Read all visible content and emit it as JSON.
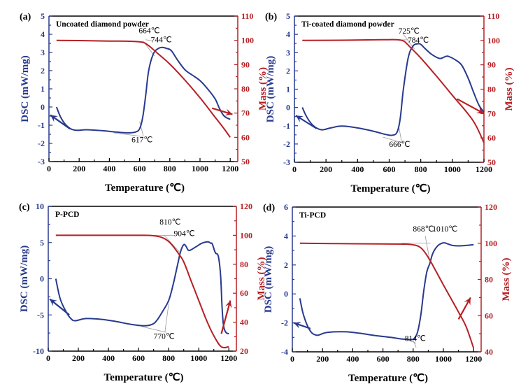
{
  "colors": {
    "dsc": "#283a8e",
    "mass": "#b52025",
    "guide": "#9a9a9a",
    "frame": "#000000"
  },
  "chart_data": [
    {
      "type": "line",
      "panel": "(a)",
      "title": "Uncoated diamond powder",
      "xlabel": "Temperature (℃)",
      "ylabel": "DSC (mW/mg)",
      "y2label": "Mass (%)",
      "xlim": [
        0,
        1250
      ],
      "xticks": [
        0,
        200,
        400,
        600,
        800,
        1000,
        1200
      ],
      "ylim": [
        -3,
        5
      ],
      "yticks": [
        -3,
        -2,
        -1,
        0,
        1,
        2,
        3,
        4,
        5
      ],
      "y2lim": [
        50,
        110
      ],
      "y2ticks": [
        50,
        60,
        70,
        80,
        90,
        100,
        110
      ],
      "series": [
        {
          "name": "DSC",
          "axis": "left",
          "x": [
            50,
            80,
            120,
            170,
            250,
            350,
            450,
            520,
            570,
            600,
            620,
            640,
            660,
            690,
            720,
            750,
            780,
            810,
            850,
            900,
            950,
            1000,
            1050,
            1100,
            1130,
            1160,
            1200
          ],
          "y": [
            0.0,
            -0.6,
            -1.05,
            -1.27,
            -1.25,
            -1.3,
            -1.38,
            -1.42,
            -1.38,
            -1.2,
            -0.6,
            0.6,
            2.0,
            2.9,
            3.2,
            3.28,
            3.22,
            3.1,
            2.6,
            2.05,
            1.75,
            1.45,
            1.0,
            0.45,
            -0.1,
            -0.5,
            -0.68
          ]
        },
        {
          "name": "Mass",
          "axis": "right",
          "x": [
            50,
            200,
            400,
            550,
            620,
            650,
            680,
            720,
            800,
            900,
            1000,
            1100,
            1150,
            1200
          ],
          "y": [
            100,
            99.9,
            99.7,
            99.6,
            99.2,
            98.3,
            96.8,
            94.6,
            90.2,
            83.6,
            76.3,
            68.3,
            64.3,
            60.0
          ]
        }
      ],
      "annotations": [
        {
          "text": "664℃",
          "x": 664,
          "y": 4.05
        },
        {
          "text": "744℃",
          "x": 744,
          "y": 3.55
        },
        {
          "text": "617℃",
          "x": 617,
          "y": -1.95
        }
      ]
    },
    {
      "type": "line",
      "panel": "(b)",
      "title": "Ti-coated diamond powder",
      "xlabel": "Temperature (℃)",
      "ylabel": "DSC (mW/mg)",
      "y2label": "Mass (%)",
      "xlim": [
        0,
        1200
      ],
      "xticks": [
        0,
        200,
        400,
        600,
        800,
        1000,
        1200
      ],
      "ylim": [
        -3,
        5
      ],
      "yticks": [
        -3,
        -2,
        -1,
        0,
        1,
        2,
        3,
        4,
        5
      ],
      "y2lim": [
        50,
        110
      ],
      "y2ticks": [
        50,
        60,
        70,
        80,
        90,
        100,
        110
      ],
      "series": [
        {
          "name": "DSC",
          "axis": "left",
          "x": [
            50,
            80,
            120,
            170,
            230,
            300,
            400,
            500,
            580,
            620,
            650,
            670,
            690,
            720,
            750,
            780,
            800,
            830,
            870,
            920,
            960,
            980,
            1020,
            1060,
            1100,
            1140,
            1170,
            1200
          ],
          "y": [
            0.0,
            -0.55,
            -1.0,
            -1.22,
            -1.12,
            -1.02,
            -1.12,
            -1.3,
            -1.48,
            -1.52,
            -1.35,
            -0.6,
            1.0,
            2.7,
            3.35,
            3.48,
            3.45,
            3.2,
            2.9,
            2.68,
            2.8,
            2.78,
            2.6,
            2.3,
            1.6,
            0.7,
            0.1,
            -0.25
          ]
        },
        {
          "name": "Mass",
          "axis": "right",
          "x": [
            50,
            300,
            550,
            650,
            690,
            710,
            740,
            800,
            900,
            1000,
            1100,
            1150,
            1200
          ],
          "y": [
            100,
            100.1,
            100.3,
            100.3,
            99.8,
            98.8,
            96.8,
            92.8,
            85.3,
            77.5,
            69.8,
            65.0,
            58.0
          ]
        }
      ],
      "annotations": [
        {
          "text": "725℃",
          "x": 725,
          "y": 4.05
        },
        {
          "text": "784℃",
          "x": 784,
          "y": 3.55
        },
        {
          "text": "666℃",
          "x": 666,
          "y": -2.15
        }
      ]
    },
    {
      "type": "line",
      "panel": "(c)",
      "title": "P-PCD",
      "xlabel": "Temperature (℃)",
      "ylabel": "DSC (mW/mg)",
      "y2label": "Mass (%)",
      "xlim": [
        0,
        1250
      ],
      "xticks": [
        0,
        200,
        400,
        600,
        800,
        1000,
        1200
      ],
      "ylim": [
        -10,
        10
      ],
      "yticks": [
        -10,
        -5,
        0,
        5,
        10
      ],
      "y2lim": [
        20,
        120
      ],
      "y2ticks": [
        20,
        40,
        60,
        80,
        100,
        120
      ],
      "series": [
        {
          "name": "DSC",
          "axis": "left",
          "x": [
            50,
            80,
            120,
            150,
            180,
            250,
            350,
            450,
            550,
            640,
            690,
            720,
            760,
            800,
            830,
            860,
            880,
            900,
            915,
            935,
            980,
            1020,
            1060,
            1080,
            1090,
            1110,
            1130,
            1145,
            1155,
            1165,
            1180,
            1200
          ],
          "y": [
            0.0,
            -2.8,
            -4.6,
            -5.5,
            -5.8,
            -5.5,
            -5.6,
            -5.9,
            -6.3,
            -6.5,
            -6.3,
            -5.8,
            -4.5,
            -3.0,
            -0.8,
            2.0,
            3.8,
            4.7,
            4.5,
            3.9,
            4.4,
            4.9,
            5.1,
            4.9,
            4.8,
            3.6,
            3.1,
            0.5,
            -4.0,
            -6.5,
            -7.4,
            -7.6
          ]
        },
        {
          "name": "Mass",
          "axis": "right",
          "x": [
            50,
            300,
            600,
            700,
            760,
            800,
            830,
            870,
            900,
            950,
            1000,
            1050,
            1100,
            1150,
            1200
          ],
          "y": [
            100,
            100,
            100,
            99.7,
            98.3,
            95.7,
            92.3,
            86.7,
            81.7,
            68.3,
            55.0,
            41.7,
            30.7,
            23.0,
            23.0
          ]
        }
      ],
      "annotations": [
        {
          "text": "810℃",
          "x": 810,
          "y": 7.5
        },
        {
          "text": "904℃",
          "x": 904,
          "y": 5.9
        },
        {
          "text": "770℃",
          "x": 770,
          "y": -8.3
        }
      ]
    },
    {
      "type": "line",
      "panel": "(d)",
      "title": "Ti-PCD",
      "xlabel": "Temperature (℃)",
      "ylabel": "DSC (mW/mg)",
      "y2label": "Mass (%)",
      "xlim": [
        0,
        1250
      ],
      "xticks": [
        0,
        200,
        400,
        600,
        800,
        1000,
        1200
      ],
      "ylim": [
        -4,
        6
      ],
      "yticks": [
        -4,
        -2,
        0,
        2,
        4,
        6
      ],
      "y2lim": [
        40,
        120
      ],
      "y2ticks": [
        40,
        60,
        80,
        100,
        120
      ],
      "series": [
        {
          "name": "DSC",
          "axis": "left",
          "x": [
            50,
            70,
            100,
            130,
            160,
            180,
            220,
            280,
            360,
            450,
            550,
            650,
            730,
            790,
            810,
            830,
            850,
            870,
            890,
            910,
            930,
            960,
            990,
            1010,
            1030,
            1060,
            1100,
            1150,
            1200
          ],
          "y": [
            -0.3,
            -1.3,
            -2.2,
            -2.7,
            -2.85,
            -2.82,
            -2.68,
            -2.62,
            -2.62,
            -2.72,
            -2.88,
            -3.0,
            -3.12,
            -3.15,
            -3.05,
            -2.6,
            -1.5,
            0.2,
            1.5,
            2.1,
            2.8,
            3.3,
            3.5,
            3.52,
            3.45,
            3.35,
            3.32,
            3.35,
            3.4
          ]
        },
        {
          "name": "Mass",
          "axis": "right",
          "x": [
            50,
            300,
            600,
            750,
            820,
            850,
            870,
            890,
            920,
            1000,
            1100,
            1150,
            1200
          ],
          "y": [
            100,
            99.8,
            99.6,
            99.5,
            98.8,
            97.5,
            95.8,
            93.5,
            89.3,
            77.0,
            62.0,
            54.0,
            42.0
          ]
        }
      ],
      "annotations": [
        {
          "text": "868℃",
          "x": 868,
          "y": 4.3
        },
        {
          "text": "1010℃",
          "x": 1010,
          "y": 4.3
        },
        {
          "text": "814℃",
          "x": 814,
          "y": -3.25
        }
      ]
    }
  ]
}
